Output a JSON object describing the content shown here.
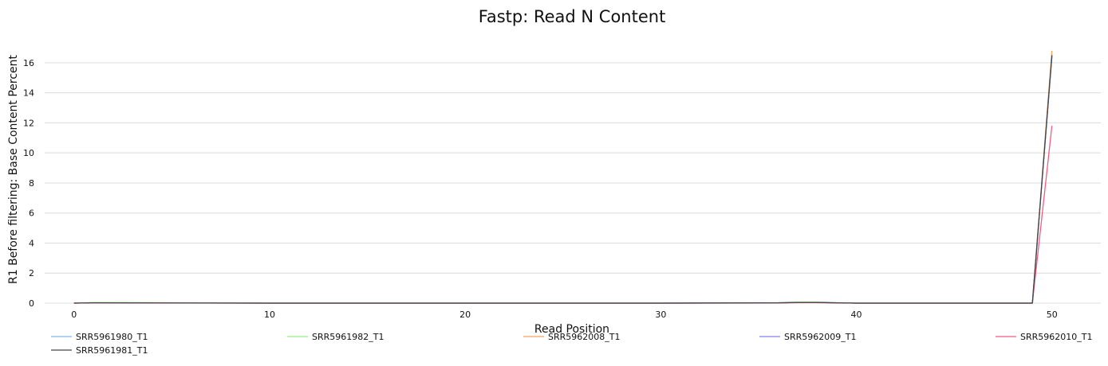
{
  "chart_data": {
    "type": "line",
    "title": "Fastp: Read N Content",
    "xlabel": "Read Position",
    "ylabel": "R1 Before filtering: Base Content Percent",
    "xlim": [
      -1.5,
      52.5
    ],
    "ylim": [
      0,
      17
    ],
    "xticks": [
      0,
      10,
      20,
      30,
      40,
      50
    ],
    "yticks": [
      0,
      2,
      4,
      6,
      8,
      10,
      12,
      14,
      16
    ],
    "grid": true,
    "legend_position": "bottom",
    "series": [
      {
        "name": "SRR5961980_T1",
        "color": "#7cb5ec",
        "x": [
          0,
          1,
          10,
          20,
          30,
          36,
          37,
          38,
          39,
          40,
          45,
          49,
          50
        ],
        "y": [
          0,
          0.03,
          0,
          0,
          0,
          0.02,
          0.05,
          0.05,
          0.02,
          0,
          0,
          0,
          16.5
        ]
      },
      {
        "name": "SRR5961982_T1",
        "color": "#90ed7d",
        "x": [
          0,
          1,
          10,
          20,
          30,
          36,
          37,
          38,
          39,
          40,
          45,
          49,
          50
        ],
        "y": [
          0,
          0.05,
          0,
          0,
          0,
          0.03,
          0.07,
          0.07,
          0.03,
          0,
          0,
          0,
          16.6
        ]
      },
      {
        "name": "SRR5962008_T1",
        "color": "#f7a35c",
        "x": [
          0,
          1,
          10,
          20,
          30,
          36,
          37,
          38,
          39,
          40,
          45,
          49,
          50
        ],
        "y": [
          0,
          0.02,
          0,
          0,
          0,
          0.02,
          0.04,
          0.04,
          0.02,
          0,
          0,
          0,
          16.8
        ]
      },
      {
        "name": "SRR5962009_T1",
        "color": "#8085e9",
        "x": [
          0,
          1,
          10,
          20,
          30,
          36,
          37,
          38,
          39,
          40,
          45,
          49,
          50
        ],
        "y": [
          0,
          0.02,
          0,
          0,
          0,
          0.02,
          0.04,
          0.04,
          0.02,
          0,
          0,
          0,
          16.4
        ]
      },
      {
        "name": "SRR5962010_T1",
        "color": "#f15c80",
        "x": [
          0,
          1,
          10,
          20,
          30,
          36,
          37,
          38,
          39,
          40,
          45,
          49,
          50
        ],
        "y": [
          0,
          0.02,
          0,
          0,
          0,
          0.01,
          0.03,
          0.03,
          0.01,
          0,
          0,
          0,
          11.8
        ]
      },
      {
        "name": "SRR5961981_T1",
        "color": "#434348",
        "x": [
          0,
          1,
          10,
          20,
          30,
          36,
          37,
          38,
          39,
          40,
          45,
          49,
          50
        ],
        "y": [
          0,
          0.02,
          0,
          0,
          0,
          0.02,
          0.05,
          0.05,
          0.02,
          0,
          0,
          0,
          16.5
        ]
      }
    ]
  }
}
